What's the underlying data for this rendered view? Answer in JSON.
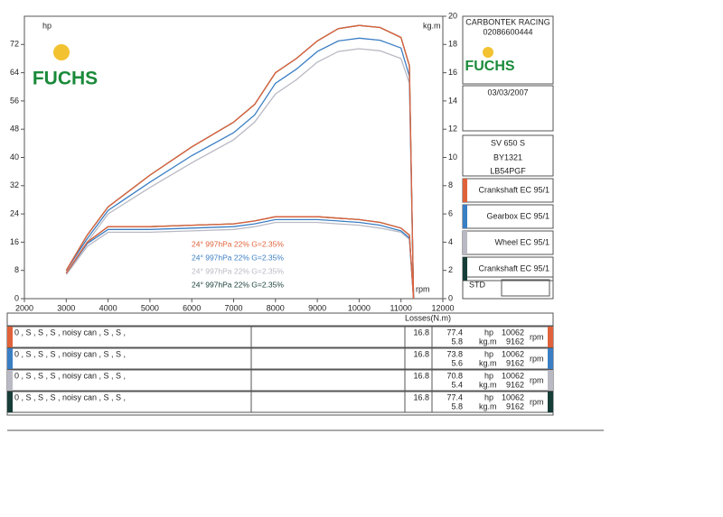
{
  "chart_data": {
    "type": "line",
    "y_unit": "hp",
    "y2_unit": "kg.m",
    "x_unit": "rpm",
    "logo": "FUCHS",
    "x": [
      3000,
      3500,
      4000,
      5000,
      6000,
      7000,
      7500,
      8000,
      8500,
      9000,
      9500,
      10000,
      10500,
      11000,
      11200,
      11300
    ],
    "xlim": [
      2000,
      12000
    ],
    "xticks": [
      2000,
      3000,
      4000,
      5000,
      6000,
      7000,
      8000,
      9000,
      10000,
      11000,
      12000
    ],
    "ylim": [
      0,
      80
    ],
    "yticks": [
      0,
      8,
      16,
      24,
      32,
      40,
      48,
      56,
      64,
      72
    ],
    "y2lim": [
      0,
      20
    ],
    "y2ticks": [
      0,
      2,
      4,
      6,
      8,
      10,
      12,
      14,
      16,
      18,
      20
    ],
    "series": [
      {
        "name": "Crankshaft EC 95/1",
        "color": "#e0623a",
        "annotation": "24°  997hPa  22%    G=2.35%",
        "values": [
          8,
          18,
          26,
          35,
          43,
          50,
          55,
          64,
          68,
          73,
          76.5,
          77.4,
          76.8,
          74,
          66,
          0
        ],
        "torque": [
          1.8,
          4,
          5.1,
          5.1,
          5.2,
          5.3,
          5.5,
          5.8,
          5.8,
          5.8,
          5.7,
          5.6,
          5.4,
          5,
          4.5,
          0
        ]
      },
      {
        "name": "Gearbox EC 95/1",
        "color": "#3a7ec4",
        "annotation": "24°  997hPa  22%    G=2.35%",
        "values": [
          8,
          17,
          25,
          33,
          40.5,
          47,
          52,
          61,
          65,
          70,
          73,
          73.8,
          73.2,
          71,
          63,
          0
        ],
        "torque": [
          1.8,
          3.9,
          4.9,
          4.9,
          5,
          5.1,
          5.3,
          5.6,
          5.6,
          5.6,
          5.5,
          5.4,
          5.2,
          4.8,
          4.3,
          0
        ]
      },
      {
        "name": "Wheel EC 95/1",
        "color": "#b9b9c4",
        "annotation": "24°  997hPa  22%    G=2.35%",
        "values": [
          7.5,
          16,
          24,
          31.5,
          38.5,
          45,
          50,
          58,
          62,
          67,
          70,
          70.8,
          70.2,
          68,
          61,
          0
        ],
        "torque": [
          1.7,
          3.7,
          4.7,
          4.7,
          4.8,
          4.9,
          5.1,
          5.4,
          5.4,
          5.4,
          5.3,
          5.2,
          5,
          4.7,
          4.2,
          0
        ]
      },
      {
        "name": "Crankshaft EC 95/1",
        "color": "#173d38",
        "annotation": "24°  997hPa  22%    G=2.35%",
        "values": [
          8,
          18,
          26,
          35,
          43,
          50,
          55,
          64,
          68,
          73,
          76.5,
          77.4,
          76.8,
          74,
          66,
          0
        ],
        "torque": [
          1.8,
          4,
          5.1,
          5.1,
          5.2,
          5.3,
          5.5,
          5.8,
          5.8,
          5.8,
          5.7,
          5.6,
          5.4,
          5,
          4.5,
          0
        ]
      }
    ]
  },
  "info": {
    "company": "CARBONTEK RACING",
    "phone": "02086600444",
    "date": "03/03/2007",
    "model": "SV 650 S",
    "id": "BY1321",
    "plate": "LB54PGF",
    "std": "STD"
  },
  "table": {
    "losses_header": "Losses(N.m)",
    "hp_unit": "hp",
    "kgm_unit": "kg.m",
    "rpm_unit": "rpm",
    "rows": [
      {
        "notes": "0  , S  , S  , S  , noisy can  , S  , S  ,",
        "losses": 16.8,
        "hp": 77.4,
        "kgm": 5.8,
        "hp_rpm": 10062,
        "kgm_rpm": 9162
      },
      {
        "notes": "0  , S  , S  , S  , noisy can  , S  , S  ,",
        "losses": 16.8,
        "hp": 73.8,
        "kgm": 5.6,
        "hp_rpm": 10062,
        "kgm_rpm": 9162
      },
      {
        "notes": "0  , S  , S  , S  , noisy can  , S  , S  ,",
        "losses": 16.8,
        "hp": 70.8,
        "kgm": 5.4,
        "hp_rpm": 10062,
        "kgm_rpm": 9162
      },
      {
        "notes": "0  , S  , S  , S  , noisy can  , S  , S  ,",
        "losses": 16.8,
        "hp": 77.4,
        "kgm": 5.8,
        "hp_rpm": 10062,
        "kgm_rpm": 9162
      }
    ]
  }
}
